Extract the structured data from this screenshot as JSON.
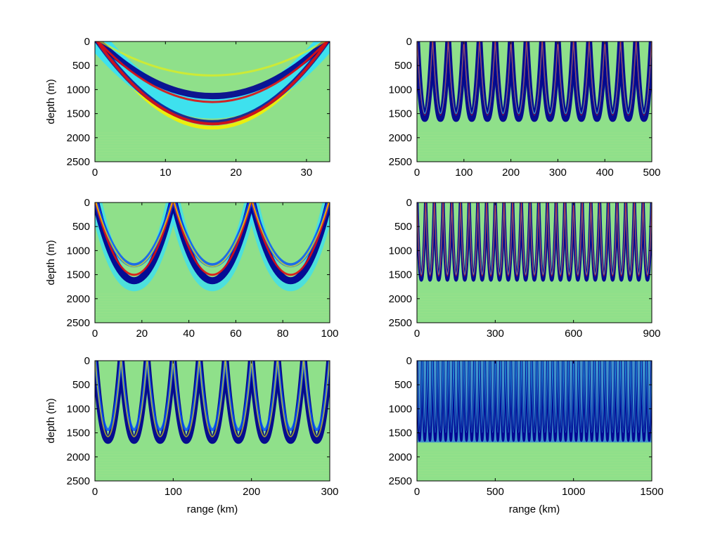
{
  "chart_data": [
    {
      "type": "heatmap",
      "ylabel": "depth (m)",
      "xlabel": "",
      "xlim": [
        0,
        33.3
      ],
      "ylim": [
        0,
        2500
      ],
      "y_reversed": true,
      "xticks": [
        0,
        10,
        20,
        30
      ],
      "yticks": [
        0,
        500,
        1000,
        1500,
        2000,
        2500
      ],
      "pattern": {
        "arches": 1,
        "depth_m": 1750,
        "half_width_fraction": 1.0,
        "style": "smooth_wide"
      }
    },
    {
      "type": "heatmap",
      "ylabel": "",
      "xlabel": "",
      "xlim": [
        0,
        500
      ],
      "ylim": [
        0,
        2500
      ],
      "y_reversed": true,
      "xticks": [
        0,
        100,
        200,
        300,
        400,
        500
      ],
      "yticks": [
        0,
        500,
        1000,
        1500,
        2000,
        2500
      ],
      "pattern": {
        "arches": 15,
        "depth_m": 1650,
        "half_width_fraction": 1.0,
        "style": "sharp"
      }
    },
    {
      "type": "heatmap",
      "ylabel": "depth (m)",
      "xlabel": "",
      "xlim": [
        0,
        100
      ],
      "ylim": [
        0,
        2500
      ],
      "y_reversed": true,
      "xticks": [
        0,
        20,
        40,
        60,
        80,
        100
      ],
      "yticks": [
        0,
        500,
        1000,
        1500,
        2000,
        2500
      ],
      "pattern": {
        "arches": 3,
        "depth_m": 1750,
        "half_width_fraction": 1.0,
        "style": "wide"
      }
    },
    {
      "type": "heatmap",
      "ylabel": "",
      "xlabel": "",
      "xlim": [
        0,
        900
      ],
      "ylim": [
        0,
        2500
      ],
      "y_reversed": true,
      "xticks": [
        0,
        300,
        600,
        900
      ],
      "yticks": [
        0,
        500,
        1000,
        1500,
        2000,
        2500
      ],
      "pattern": {
        "arches": 27,
        "depth_m": 1650,
        "half_width_fraction": 1.0,
        "style": "sharp"
      }
    },
    {
      "type": "heatmap",
      "ylabel": "depth (m)",
      "xlabel": "range (km)",
      "xlim": [
        0,
        300
      ],
      "ylim": [
        0,
        2500
      ],
      "y_reversed": true,
      "xticks": [
        0,
        100,
        200,
        300
      ],
      "yticks": [
        0,
        500,
        1000,
        1500,
        2000,
        2500
      ],
      "pattern": {
        "arches": 9,
        "depth_m": 1700,
        "half_width_fraction": 1.0,
        "style": "medium"
      }
    },
    {
      "type": "heatmap",
      "ylabel": "",
      "xlabel": "range (km)",
      "xlim": [
        0,
        1500
      ],
      "ylim": [
        0,
        2500
      ],
      "y_reversed": true,
      "xticks": [
        0,
        500,
        1000,
        1500
      ],
      "yticks": [
        0,
        500,
        1000,
        1500,
        2000,
        2500
      ],
      "pattern": {
        "arches": 45,
        "depth_m": 1700,
        "half_width_fraction": 1.0,
        "style": "dense"
      }
    }
  ],
  "colors": {
    "background_field": "#8fe08a",
    "deep_blue": "#00008f",
    "mid_blue": "#0050ff",
    "cyan": "#30e0ff",
    "yellow": "#f5f000",
    "red": "#e01010",
    "dark_red": "#8a0000"
  }
}
